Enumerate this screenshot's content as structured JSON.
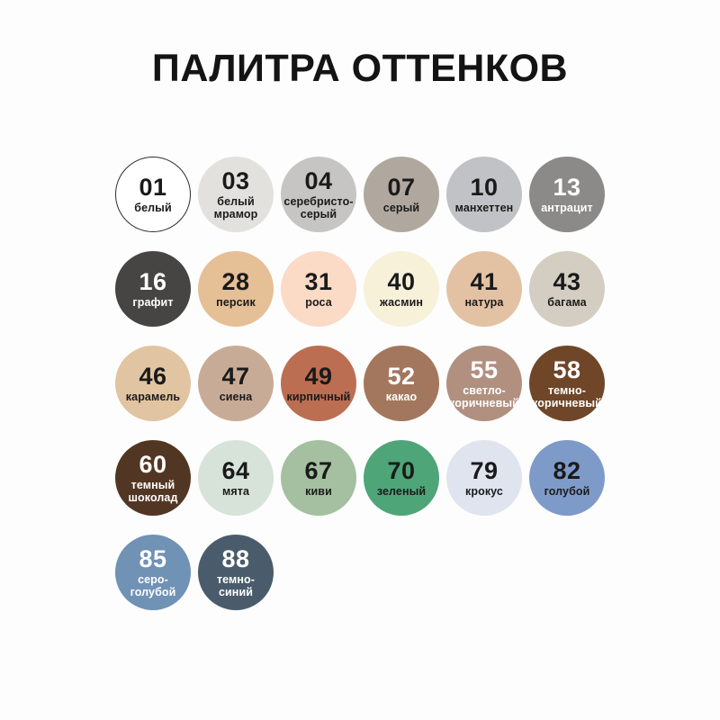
{
  "title": "ПАЛИТРА ОТТЕНКОВ",
  "palette": {
    "background": "#fdfdfd",
    "text_dark": "#1a1a1a",
    "text_light": "#ffffff",
    "outline_color": "#2e2e2e",
    "swatches": [
      {
        "number": "01",
        "name": "белый",
        "lines": [
          "белый"
        ],
        "color": "#ffffff",
        "text": "dark",
        "outlined": true
      },
      {
        "number": "03",
        "name": "белый мрамор",
        "lines": [
          "белый",
          "мрамор"
        ],
        "color": "#e2e1dd",
        "text": "dark",
        "outlined": false
      },
      {
        "number": "04",
        "name": "серебристо-серый",
        "lines": [
          "серебристо-",
          "серый"
        ],
        "color": "#c6c5c3",
        "text": "dark",
        "outlined": false
      },
      {
        "number": "07",
        "name": "серый",
        "lines": [
          "серый"
        ],
        "color": "#b0a89e",
        "text": "dark",
        "outlined": false
      },
      {
        "number": "10",
        "name": "манхеттен",
        "lines": [
          "манхеттен"
        ],
        "color": "#c0c2c5",
        "text": "dark",
        "outlined": false
      },
      {
        "number": "13",
        "name": "антрацит",
        "lines": [
          "антрацит"
        ],
        "color": "#8c8a88",
        "text": "light",
        "outlined": false
      },
      {
        "number": "16",
        "name": "графит",
        "lines": [
          "графит"
        ],
        "color": "#464543",
        "text": "light",
        "outlined": false
      },
      {
        "number": "28",
        "name": "персик",
        "lines": [
          "персик"
        ],
        "color": "#e5bf96",
        "text": "dark",
        "outlined": false
      },
      {
        "number": "31",
        "name": "роса",
        "lines": [
          "роса"
        ],
        "color": "#fbdac6",
        "text": "dark",
        "outlined": false
      },
      {
        "number": "40",
        "name": "жасмин",
        "lines": [
          "жасмин"
        ],
        "color": "#f7f1da",
        "text": "dark",
        "outlined": false
      },
      {
        "number": "41",
        "name": "натура",
        "lines": [
          "натура"
        ],
        "color": "#e3c2a3",
        "text": "dark",
        "outlined": false
      },
      {
        "number": "43",
        "name": "багама",
        "lines": [
          "багама"
        ],
        "color": "#d4cec2",
        "text": "dark",
        "outlined": false
      },
      {
        "number": "46",
        "name": "карамель",
        "lines": [
          "карамель"
        ],
        "color": "#e1c4a1",
        "text": "dark",
        "outlined": false
      },
      {
        "number": "47",
        "name": "сиена",
        "lines": [
          "сиена"
        ],
        "color": "#c8ab97",
        "text": "dark",
        "outlined": false
      },
      {
        "number": "49",
        "name": "кирпичный",
        "lines": [
          "кирпичный"
        ],
        "color": "#bc6e53",
        "text": "dark",
        "outlined": false
      },
      {
        "number": "52",
        "name": "какао",
        "lines": [
          "какао"
        ],
        "color": "#a3775e",
        "text": "light",
        "outlined": false
      },
      {
        "number": "55",
        "name": "светло-коричневый",
        "lines": [
          "светло-",
          "коричневый"
        ],
        "color": "#b19080",
        "text": "light",
        "outlined": false
      },
      {
        "number": "58",
        "name": "темно-коричневый",
        "lines": [
          "темно-",
          "коричневый"
        ],
        "color": "#6f4628",
        "text": "light",
        "outlined": false
      },
      {
        "number": "60",
        "name": "темный шоколад",
        "lines": [
          "темный",
          "шоколад"
        ],
        "color": "#523624",
        "text": "light",
        "outlined": false
      },
      {
        "number": "64",
        "name": "мята",
        "lines": [
          "мята"
        ],
        "color": "#d7e3d9",
        "text": "dark",
        "outlined": false
      },
      {
        "number": "67",
        "name": "киви",
        "lines": [
          "киви"
        ],
        "color": "#a4c0a0",
        "text": "dark",
        "outlined": false
      },
      {
        "number": "70",
        "name": "зеленый",
        "lines": [
          "зеленый"
        ],
        "color": "#4ea578",
        "text": "dark",
        "outlined": false
      },
      {
        "number": "79",
        "name": "крокус",
        "lines": [
          "крокус"
        ],
        "color": "#dfe4ee",
        "text": "dark",
        "outlined": false
      },
      {
        "number": "82",
        "name": "голубой",
        "lines": [
          "голубой"
        ],
        "color": "#7e9ac8",
        "text": "dark",
        "outlined": false
      },
      {
        "number": "85",
        "name": "серо-голубой",
        "lines": [
          "серо-",
          "голубой"
        ],
        "color": "#7092b5",
        "text": "light",
        "outlined": false
      },
      {
        "number": "88",
        "name": "темно-синий",
        "lines": [
          "темно-",
          "синий"
        ],
        "color": "#4a5c6c",
        "text": "light",
        "outlined": false
      }
    ]
  }
}
